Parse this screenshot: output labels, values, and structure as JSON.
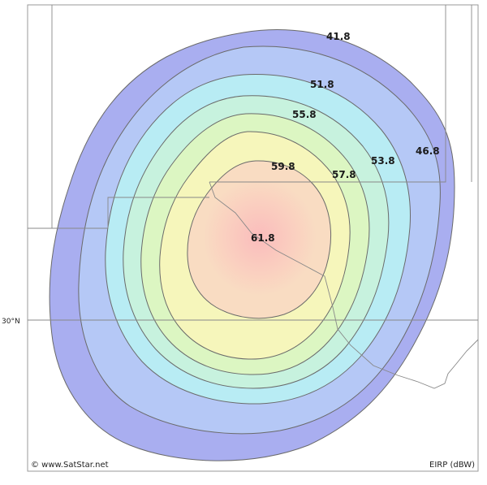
{
  "map": {
    "latitude_label": "30°N",
    "copyright": "© www.SatStar.net",
    "legend_unit": "EIRP (dBW)",
    "contours": [
      {
        "label": "41.8",
        "color": "#a9aef0"
      },
      {
        "label": "46.8",
        "color": "#b5c8f6"
      },
      {
        "label": "51.8",
        "color": "#b8ecf4"
      },
      {
        "label": "53.8",
        "color": "#c7f2de"
      },
      {
        "label": "55.8",
        "color": "#dcf6c2"
      },
      {
        "label": "57.8",
        "color": "#f6f6bb"
      },
      {
        "label": "59.8",
        "color": "#f9dcc2"
      },
      {
        "label": "61.8",
        "color": "#fbc4c4"
      }
    ]
  }
}
